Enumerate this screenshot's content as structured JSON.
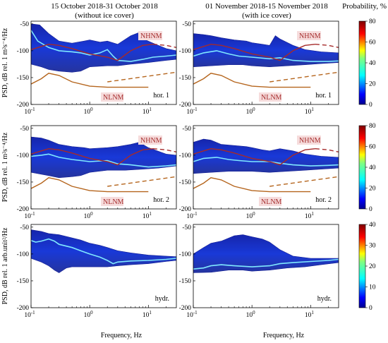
{
  "titles": {
    "left_line1": "15 October 2018-31 October 2018",
    "left_line2": "(without ice cover)",
    "right_line1": "01 November 2018-15 November 2018",
    "right_line2": "(with ice cover)",
    "prob_label": "Probability, %"
  },
  "ylabels": [
    "PSD, dB rel. 1 m²s⁻⁴/Hz",
    "PSD, dB rel. 1 m²s⁻⁴/Hz",
    "PSD, dB rel. 1 arb.unit²/Hz"
  ],
  "xlabel": "Frequency, Hz",
  "xticks": [
    {
      "v": 0.1,
      "b": "10",
      "e": "-1"
    },
    {
      "v": 1,
      "b": "10",
      "e": "0"
    },
    {
      "v": 10,
      "b": "10",
      "e": "1"
    }
  ],
  "colors": {
    "nlnm": "#b5651d",
    "nhnm": "#a52a2a",
    "label_bg": "#f6dcdc",
    "peterson_tag_text": "#a52a2a"
  },
  "chart_data": [
    {
      "type": "heatmap",
      "row": 0,
      "col": 0,
      "component": "hor. 1",
      "ylim": [
        -200,
        -45
      ],
      "xlim": [
        0.1,
        30
      ],
      "yticks": [
        -50,
        -100,
        -150,
        -200
      ],
      "show_nm": true,
      "nm_labels": [
        "NHNM",
        "NLNM"
      ],
      "mode_line": [
        [
          0.1,
          -62
        ],
        [
          0.13,
          -82
        ],
        [
          0.2,
          -94
        ],
        [
          0.3,
          -100
        ],
        [
          0.5,
          -102
        ],
        [
          0.7,
          -104
        ],
        [
          1,
          -108
        ],
        [
          1.5,
          -104
        ],
        [
          2,
          -98
        ],
        [
          2.5,
          -110
        ],
        [
          3,
          -118
        ],
        [
          5,
          -120
        ],
        [
          8,
          -116
        ],
        [
          12,
          -112
        ],
        [
          20,
          -110
        ],
        [
          30,
          -108
        ]
      ],
      "upper": [
        [
          0.1,
          -50
        ],
        [
          0.14,
          -52
        ],
        [
          0.2,
          -68
        ],
        [
          0.3,
          -82
        ],
        [
          0.5,
          -86
        ],
        [
          0.8,
          -82
        ],
        [
          1,
          -80
        ],
        [
          1.5,
          -84
        ],
        [
          2,
          -82
        ],
        [
          3,
          -88
        ],
        [
          5,
          -72
        ],
        [
          7,
          -66
        ],
        [
          9,
          -80
        ],
        [
          12,
          -86
        ],
        [
          20,
          -96
        ],
        [
          30,
          -100
        ]
      ],
      "lower": [
        [
          0.1,
          -125
        ],
        [
          0.15,
          -130
        ],
        [
          0.2,
          -135
        ],
        [
          0.3,
          -138
        ],
        [
          0.5,
          -140
        ],
        [
          0.7,
          -138
        ],
        [
          1,
          -130
        ],
        [
          2,
          -128
        ],
        [
          3,
          -128
        ],
        [
          5,
          -125
        ],
        [
          10,
          -122
        ],
        [
          20,
          -118
        ],
        [
          30,
          -116
        ]
      ]
    },
    {
      "type": "heatmap",
      "row": 0,
      "col": 1,
      "component": "hor. 1",
      "ylim": [
        -200,
        -45
      ],
      "xlim": [
        0.1,
        30
      ],
      "yticks": [
        -50,
        -100,
        -150,
        -200
      ],
      "show_nm": true,
      "nm_labels": [
        "NHNM",
        "NLNM"
      ],
      "mode_line": [
        [
          0.1,
          -110
        ],
        [
          0.15,
          -104
        ],
        [
          0.25,
          -100
        ],
        [
          0.4,
          -106
        ],
        [
          0.6,
          -110
        ],
        [
          1,
          -112
        ],
        [
          2,
          -115
        ],
        [
          3,
          -113
        ],
        [
          5,
          -118
        ],
        [
          10,
          -120
        ],
        [
          20,
          -120
        ],
        [
          30,
          -119
        ]
      ],
      "upper": [
        [
          0.1,
          -68
        ],
        [
          0.15,
          -70
        ],
        [
          0.2,
          -72
        ],
        [
          0.3,
          -76
        ],
        [
          0.5,
          -80
        ],
        [
          0.8,
          -82
        ],
        [
          1,
          -85
        ],
        [
          1.5,
          -88
        ],
        [
          2,
          -90
        ],
        [
          2.5,
          -72
        ],
        [
          3,
          -78
        ],
        [
          5,
          -90
        ],
        [
          8,
          -98
        ],
        [
          15,
          -102
        ],
        [
          30,
          -104
        ]
      ],
      "lower": [
        [
          0.1,
          -130
        ],
        [
          0.2,
          -128
        ],
        [
          0.4,
          -126
        ],
        [
          0.7,
          -126
        ],
        [
          1,
          -128
        ],
        [
          2,
          -130
        ],
        [
          4,
          -128
        ],
        [
          8,
          -126
        ],
        [
          15,
          -124
        ],
        [
          30,
          -122
        ]
      ]
    },
    {
      "type": "heatmap",
      "row": 1,
      "col": 0,
      "component": "hor. 2",
      "ylim": [
        -200,
        -45
      ],
      "xlim": [
        0.1,
        30
      ],
      "yticks": [
        -50,
        -100,
        -150,
        -200
      ],
      "show_nm": true,
      "nm_labels": [
        "NHNM",
        "NLNM"
      ],
      "mode_line": [
        [
          0.1,
          -102
        ],
        [
          0.15,
          -100
        ],
        [
          0.2,
          -98
        ],
        [
          0.3,
          -104
        ],
        [
          0.5,
          -108
        ],
        [
          1,
          -112
        ],
        [
          2,
          -110
        ],
        [
          3,
          -116
        ],
        [
          5,
          -118
        ],
        [
          10,
          -122
        ],
        [
          20,
          -120
        ],
        [
          30,
          -118
        ]
      ],
      "upper": [
        [
          0.1,
          -66
        ],
        [
          0.15,
          -68
        ],
        [
          0.2,
          -72
        ],
        [
          0.3,
          -80
        ],
        [
          0.5,
          -84
        ],
        [
          0.8,
          -86
        ],
        [
          1,
          -88
        ],
        [
          2,
          -86
        ],
        [
          3,
          -84
        ],
        [
          5,
          -80
        ],
        [
          7,
          -76
        ],
        [
          10,
          -86
        ],
        [
          20,
          -98
        ],
        [
          30,
          -100
        ]
      ],
      "lower": [
        [
          0.1,
          -132
        ],
        [
          0.2,
          -138
        ],
        [
          0.3,
          -142
        ],
        [
          0.5,
          -140
        ],
        [
          0.7,
          -138
        ],
        [
          1,
          -132
        ],
        [
          2,
          -128
        ],
        [
          4,
          -128
        ],
        [
          8,
          -126
        ],
        [
          15,
          -124
        ],
        [
          30,
          -120
        ]
      ]
    },
    {
      "type": "heatmap",
      "row": 1,
      "col": 1,
      "component": "hor. 2",
      "ylim": [
        -200,
        -45
      ],
      "xlim": [
        0.1,
        30
      ],
      "yticks": [
        -50,
        -100,
        -150,
        -200
      ],
      "show_nm": true,
      "nm_labels": [
        "NHNM",
        "NLNM"
      ],
      "mode_line": [
        [
          0.1,
          -112
        ],
        [
          0.15,
          -106
        ],
        [
          0.25,
          -104
        ],
        [
          0.4,
          -108
        ],
        [
          0.6,
          -110
        ],
        [
          1,
          -112
        ],
        [
          2,
          -112
        ],
        [
          3,
          -115
        ],
        [
          5,
          -118
        ],
        [
          10,
          -120
        ],
        [
          20,
          -119
        ],
        [
          30,
          -118
        ]
      ],
      "upper": [
        [
          0.1,
          -76
        ],
        [
          0.15,
          -70
        ],
        [
          0.2,
          -72
        ],
        [
          0.3,
          -80
        ],
        [
          0.5,
          -82
        ],
        [
          0.8,
          -84
        ],
        [
          1,
          -86
        ],
        [
          1.5,
          -90
        ],
        [
          2,
          -92
        ],
        [
          3,
          -88
        ],
        [
          5,
          -92
        ],
        [
          8,
          -98
        ],
        [
          15,
          -102
        ],
        [
          30,
          -104
        ]
      ],
      "lower": [
        [
          0.1,
          -134
        ],
        [
          0.2,
          -132
        ],
        [
          0.4,
          -130
        ],
        [
          0.7,
          -130
        ],
        [
          1,
          -130
        ],
        [
          2,
          -132
        ],
        [
          4,
          -130
        ],
        [
          8,
          -128
        ],
        [
          15,
          -126
        ],
        [
          30,
          -124
        ]
      ]
    },
    {
      "type": "heatmap",
      "row": 2,
      "col": 0,
      "component": "hydr.",
      "ylim": [
        -200,
        -45
      ],
      "xlim": [
        0.1,
        30
      ],
      "yticks": [
        -50,
        -100,
        -150,
        -200
      ],
      "show_nm": false,
      "nm_labels": [],
      "mode_line": [
        [
          0.1,
          -75
        ],
        [
          0.12,
          -78
        ],
        [
          0.15,
          -76
        ],
        [
          0.2,
          -72
        ],
        [
          0.25,
          -76
        ],
        [
          0.3,
          -82
        ],
        [
          0.5,
          -88
        ],
        [
          0.7,
          -94
        ],
        [
          1,
          -100
        ],
        [
          1.5,
          -106
        ],
        [
          2,
          -112
        ],
        [
          2.5,
          -118
        ],
        [
          3,
          -115
        ],
        [
          5,
          -113
        ],
        [
          10,
          -112
        ],
        [
          20,
          -110
        ],
        [
          30,
          -108
        ]
      ],
      "upper": [
        [
          0.1,
          -55
        ],
        [
          0.15,
          -58
        ],
        [
          0.2,
          -62
        ],
        [
          0.3,
          -64
        ],
        [
          0.5,
          -70
        ],
        [
          0.7,
          -74
        ],
        [
          1,
          -80
        ],
        [
          1.5,
          -84
        ],
        [
          2,
          -88
        ],
        [
          3,
          -94
        ],
        [
          5,
          -98
        ],
        [
          10,
          -102
        ],
        [
          20,
          -104
        ],
        [
          30,
          -105
        ]
      ],
      "lower": [
        [
          0.1,
          -108
        ],
        [
          0.15,
          -115
        ],
        [
          0.2,
          -122
        ],
        [
          0.25,
          -130
        ],
        [
          0.3,
          -135
        ],
        [
          0.4,
          -126
        ],
        [
          0.5,
          -124
        ],
        [
          0.7,
          -124
        ],
        [
          1,
          -124
        ],
        [
          2,
          -124
        ],
        [
          3,
          -122
        ],
        [
          5,
          -120
        ],
        [
          10,
          -118
        ],
        [
          20,
          -114
        ],
        [
          30,
          -112
        ]
      ]
    },
    {
      "type": "heatmap",
      "row": 2,
      "col": 1,
      "component": "hydr.",
      "ylim": [
        -200,
        -45
      ],
      "xlim": [
        0.1,
        30
      ],
      "yticks": [
        -50,
        -100,
        -150,
        -200
      ],
      "show_nm": false,
      "nm_labels": [],
      "mode_line": [
        [
          0.1,
          -128
        ],
        [
          0.15,
          -126
        ],
        [
          0.2,
          -122
        ],
        [
          0.3,
          -120
        ],
        [
          0.5,
          -122
        ],
        [
          1,
          -124
        ],
        [
          2,
          -122
        ],
        [
          3,
          -118
        ],
        [
          5,
          -116
        ],
        [
          10,
          -114
        ],
        [
          20,
          -112
        ],
        [
          30,
          -110
        ]
      ],
      "upper": [
        [
          0.1,
          -100
        ],
        [
          0.15,
          -88
        ],
        [
          0.2,
          -80
        ],
        [
          0.3,
          -76
        ],
        [
          0.5,
          -66
        ],
        [
          0.7,
          -64
        ],
        [
          1,
          -68
        ],
        [
          1.5,
          -72
        ],
        [
          2,
          -78
        ],
        [
          3,
          -92
        ],
        [
          5,
          -104
        ],
        [
          10,
          -108
        ],
        [
          20,
          -108
        ],
        [
          30,
          -108
        ]
      ],
      "lower": [
        [
          0.1,
          -135
        ],
        [
          0.2,
          -134
        ],
        [
          0.4,
          -130
        ],
        [
          0.7,
          -130
        ],
        [
          1,
          -132
        ],
        [
          2,
          -130
        ],
        [
          4,
          -126
        ],
        [
          8,
          -124
        ],
        [
          15,
          -120
        ],
        [
          30,
          -116
        ]
      ]
    }
  ],
  "colorbars": [
    {
      "row": 0,
      "ticks": [
        0,
        20,
        40,
        60,
        80
      ],
      "max": 80
    },
    {
      "row": 1,
      "ticks": [
        0,
        20,
        40,
        60,
        80
      ],
      "max": 80
    },
    {
      "row": 2,
      "ticks": [
        0,
        10,
        20,
        30,
        40
      ],
      "max": 40
    }
  ],
  "nhnm_curve": [
    [
      0.1,
      -98
    ],
    [
      0.15,
      -92
    ],
    [
      0.2,
      -88
    ],
    [
      0.3,
      -90
    ],
    [
      0.5,
      -96
    ],
    [
      1,
      -106
    ],
    [
      2,
      -112
    ],
    [
      3,
      -118
    ],
    [
      5,
      -100
    ],
    [
      8,
      -90
    ],
    [
      12,
      -88
    ],
    [
      20,
      -90
    ],
    [
      30,
      -94
    ]
  ],
  "nlnm_curve": [
    [
      0.1,
      -162
    ],
    [
      0.15,
      -152
    ],
    [
      0.2,
      -142
    ],
    [
      0.3,
      -146
    ],
    [
      0.5,
      -158
    ],
    [
      1,
      -166
    ],
    [
      2,
      -168
    ],
    [
      5,
      -168
    ],
    [
      10,
      -168
    ],
    [
      30,
      -150
    ]
  ]
}
